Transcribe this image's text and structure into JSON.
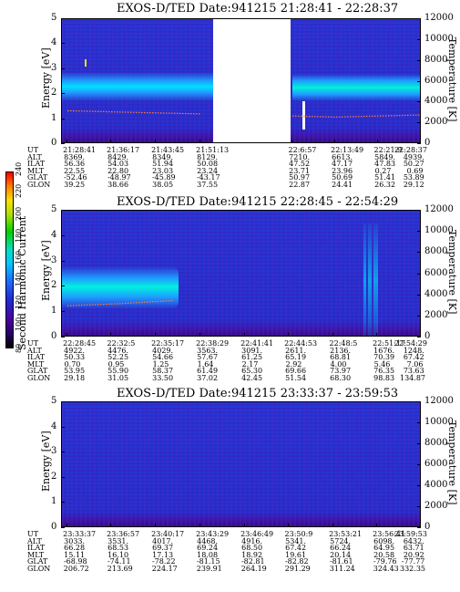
{
  "panels": [
    {
      "title": "EXOS-D/TED   Date:941215  21:28:41 - 22:28:37",
      "ut_rows": [
        {
          "label": "UT",
          "values": [
            "21:28:41",
            "21:36:17",
            "21:43:45",
            "21:51:13",
            "22:6:57",
            "22:13:49",
            "22:21:9",
            "22:28:37"
          ]
        },
        {
          "label": "ALT",
          "values": [
            "8369.",
            "8429.",
            "8349.",
            "8129.",
            "7210.",
            "6613.",
            "5849.",
            "4939."
          ]
        },
        {
          "label": "ILAT",
          "values": [
            "56.36",
            "54.03",
            "51.94",
            "50.08",
            "47.52",
            "47.17",
            "47.83",
            "50.27"
          ]
        },
        {
          "label": "MLT",
          "values": [
            "22.55",
            "22.80",
            "23.03",
            "23.24",
            "23.71",
            "23.96",
            "0.27",
            "0.69"
          ]
        },
        {
          "label": "GLAT",
          "values": [
            "-52.46",
            "-48.97",
            "-45.89",
            "-43.17",
            "50.97",
            "50.69",
            "51.41",
            "53.89"
          ]
        },
        {
          "label": "GLON",
          "values": [
            "39.25",
            "38.66",
            "38.05",
            "37.55",
            "22.87",
            "24.41",
            "26.32",
            "29.12"
          ]
        }
      ]
    },
    {
      "title": "EXOS-D/TED   Date:941215  22:28:45 - 22:54:29",
      "ut_rows": [
        {
          "label": "UT",
          "values": [
            "22:28:45",
            "22:32:5",
            "22:35:17",
            "22:38:29",
            "22:41:41",
            "22:44:53",
            "22:48:5",
            "22:51:17",
            "22:54:29"
          ]
        },
        {
          "label": "ALT",
          "values": [
            "4922.",
            "4476.",
            "4029.",
            "3563.",
            "3091.",
            "2611.",
            "2136.",
            "1676.",
            "1248."
          ]
        },
        {
          "label": "ILAT",
          "values": [
            "50.33",
            "52.25",
            "54.66",
            "57.67",
            "61.25",
            "65.19",
            "68.81",
            "70.39",
            "67.42"
          ]
        },
        {
          "label": "MLT",
          "values": [
            "0.70",
            "0.95",
            "1.25",
            "1.64",
            "2.17",
            "2.92",
            "4.00",
            "5.46",
            "7.06"
          ]
        },
        {
          "label": "GLAT",
          "values": [
            "53.95",
            "55.90",
            "58.37",
            "61.49",
            "65.30",
            "69.66",
            "73.97",
            "76.35",
            "73.63"
          ]
        },
        {
          "label": "GLON",
          "values": [
            "29.18",
            "31.05",
            "33.50",
            "37.02",
            "42.45",
            "51.54",
            "68.30",
            "98.83",
            "134.87"
          ]
        }
      ]
    },
    {
      "title": "EXOS-D/TED   Date:941215  23:33:37 - 23:59:53",
      "ut_rows": [
        {
          "label": "UT",
          "values": [
            "23:33:37",
            "23:36:57",
            "23:40:17",
            "23:43:29",
            "23:46:49",
            "23:50:9",
            "23:53:21",
            "23:56:41",
            "23:59:53"
          ]
        },
        {
          "label": "ALT",
          "values": [
            "3033.",
            "3531.",
            "4017.",
            "4468.",
            "4916.",
            "5341.",
            "5724.",
            "6098.",
            "6432."
          ]
        },
        {
          "label": "ILAT",
          "values": [
            "66.28",
            "68.53",
            "69.37",
            "69.24",
            "68.50",
            "67.42",
            "66.24",
            "64.95",
            "63.71"
          ]
        },
        {
          "label": "MLT",
          "values": [
            "15.11",
            "16.10",
            "17.13",
            "18.08",
            "18.92",
            "19.61",
            "20.14",
            "20.58",
            "20.92"
          ]
        },
        {
          "label": "GLAT",
          "values": [
            "-68.98",
            "-74.11",
            "-78.22",
            "-81.15",
            "-82.81",
            "-82.82",
            "-81.61",
            "-79.76",
            "-77.77"
          ]
        },
        {
          "label": "GLON",
          "values": [
            "206.72",
            "213.69",
            "224.17",
            "239.91",
            "264.19",
            "291.29",
            "311.24",
            "324.43",
            "332.35"
          ]
        }
      ]
    }
  ],
  "y_left_label": "Energy [eV]",
  "y_right_label": "Temperature [K]",
  "y_left_ticks": [
    "0",
    "1",
    "2",
    "3",
    "4",
    "5"
  ],
  "y_right_ticks": [
    "0",
    "2000",
    "4000",
    "6000",
    "8000",
    "10000",
    "12000"
  ],
  "colorbar": {
    "label": "Second Harmonic Current",
    "ticks": [
      "80",
      "100",
      "120",
      "140",
      "160",
      "180",
      "200",
      "220",
      "240"
    ]
  },
  "chart_data": [
    {
      "type": "heatmap",
      "title": "EXOS-D/TED   Date:941215  21:28:41 - 22:28:37",
      "xlabel": "UT",
      "ylabel": "Energy [eV]",
      "y2label": "Temperature [K]",
      "ylim": [
        0,
        5
      ],
      "y2lim": [
        0,
        12000
      ],
      "x": [
        "21:28:41",
        "21:36:17",
        "21:43:45",
        "21:51:13",
        "22:6:57",
        "22:13:49",
        "22:21:9",
        "22:28:37"
      ],
      "data_gap": [
        "21:51:13",
        "22:6:57"
      ],
      "band_peak_energy_eV": [
        2.5,
        2.4,
        2.3,
        2.1,
        2.1,
        2.2,
        2.2,
        2.2
      ],
      "temperature_K": [
        3200,
        3100,
        3000,
        2900,
        2700,
        2600,
        2700,
        2800
      ]
    },
    {
      "type": "heatmap",
      "title": "EXOS-D/TED   Date:941215  22:28:45 - 22:54:29",
      "xlabel": "UT",
      "ylabel": "Energy [eV]",
      "y2label": "Temperature [K]",
      "ylim": [
        0,
        5
      ],
      "y2lim": [
        0,
        12000
      ],
      "colorbar_label": "Second Harmonic Current",
      "colorbar_ticks": [
        80,
        100,
        120,
        140,
        160,
        180,
        200,
        220,
        240
      ],
      "x": [
        "22:28:45",
        "22:32:5",
        "22:35:17",
        "22:38:29",
        "22:41:41",
        "22:44:53",
        "22:48:5",
        "22:51:17",
        "22:54:29"
      ],
      "band_peak_energy_eV": [
        1.9,
        1.9,
        1.9
      ],
      "temperature_K": [
        3000,
        3200,
        3500
      ]
    },
    {
      "type": "heatmap",
      "title": "EXOS-D/TED   Date:941215  23:33:37 - 23:59:53",
      "xlabel": "UT",
      "ylabel": "Energy [eV]",
      "y2label": "Temperature [K]",
      "ylim": [
        0,
        5
      ],
      "y2lim": [
        0,
        12000
      ],
      "x": [
        "23:33:37",
        "23:36:57",
        "23:40:17",
        "23:43:29",
        "23:46:49",
        "23:50:9",
        "23:53:21",
        "23:56:41",
        "23:59:53"
      ]
    }
  ]
}
